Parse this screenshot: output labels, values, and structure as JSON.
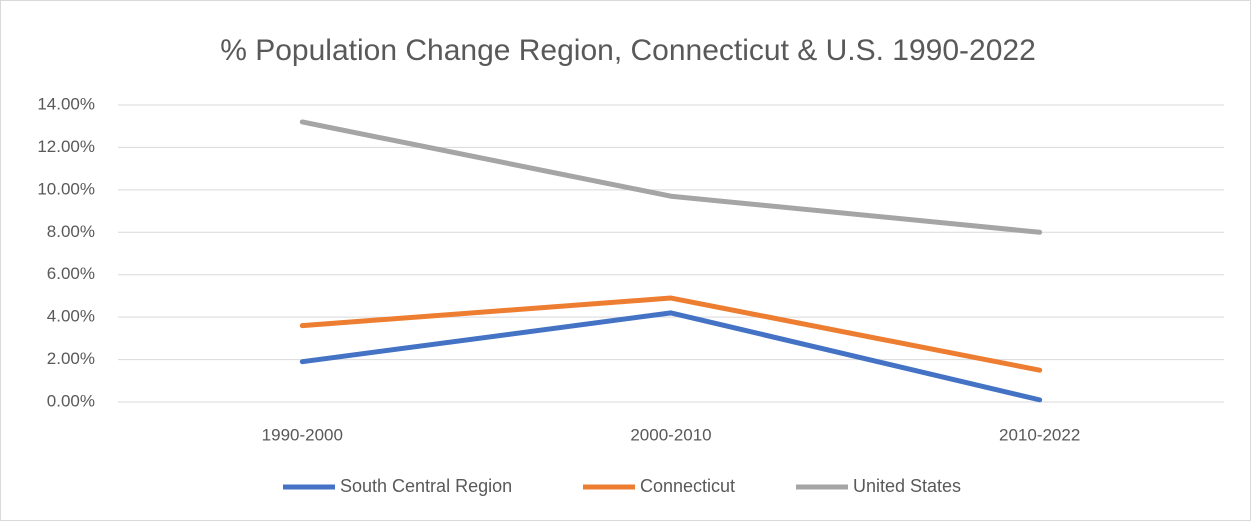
{
  "chart_data": {
    "type": "line",
    "title": "% Population Change Region, Connecticut & U.S. 1990-2022",
    "categories": [
      "1990-2000",
      "2000-2010",
      "2010-2022"
    ],
    "series": [
      {
        "name": "South Central Region",
        "color": "#4472c4",
        "values": [
          1.9,
          4.2,
          0.1
        ]
      },
      {
        "name": "Connecticut",
        "color": "#ed7d31",
        "values": [
          3.6,
          4.9,
          1.5
        ]
      },
      {
        "name": "United States",
        "color": "#a5a5a5",
        "values": [
          13.2,
          9.7,
          8.0
        ]
      }
    ],
    "ylim": [
      0,
      14
    ],
    "yticks": [
      {
        "value": 0,
        "label": "0.00%"
      },
      {
        "value": 2,
        "label": "2.00%"
      },
      {
        "value": 4,
        "label": "4.00%"
      },
      {
        "value": 6,
        "label": "6.00%"
      },
      {
        "value": 8,
        "label": "8.00%"
      },
      {
        "value": 10,
        "label": "10.00%"
      },
      {
        "value": 12,
        "label": "12.00%"
      },
      {
        "value": 14,
        "label": "14.00%"
      }
    ],
    "grid": true,
    "legend": "bottom"
  }
}
